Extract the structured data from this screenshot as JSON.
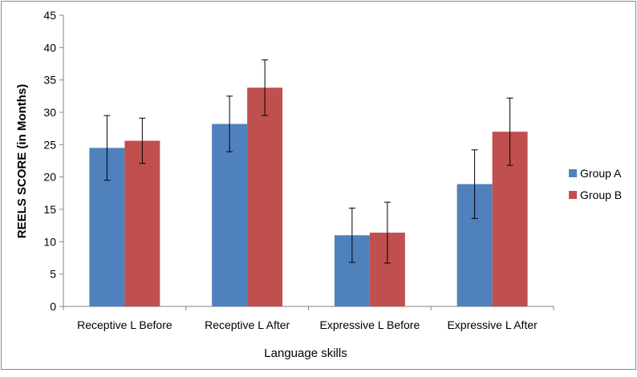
{
  "chart_data": {
    "type": "bar",
    "title": "",
    "xlabel": "Language skills",
    "ylabel": "REELS  SCORE (in Months)",
    "ylim": [
      0,
      45
    ],
    "yticks": [
      0,
      5,
      10,
      15,
      20,
      25,
      30,
      35,
      40,
      45
    ],
    "grid": false,
    "legend_position": "right",
    "categories": [
      "Receptive L Before",
      "Receptive L After",
      "Expressive L Before",
      "Expressive L After"
    ],
    "series": [
      {
        "name": "Group A",
        "color": "#4F81BD",
        "values": [
          24.5,
          28.2,
          11.0,
          18.9
        ],
        "error": [
          5.0,
          4.3,
          4.2,
          5.3
        ]
      },
      {
        "name": "Group B",
        "color": "#C0504D",
        "values": [
          25.6,
          33.8,
          11.4,
          27.0
        ],
        "error": [
          3.5,
          4.3,
          4.7,
          5.2
        ]
      }
    ]
  }
}
